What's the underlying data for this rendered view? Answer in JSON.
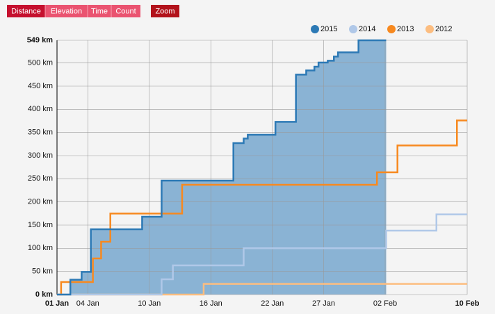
{
  "buttons": [
    "Distance",
    "Elevation",
    "Time",
    "Count"
  ],
  "zoom_button": "Zoom",
  "chart_data": {
    "type": "step",
    "legend": "top-right",
    "grid": true,
    "xlim": [
      0,
      40
    ],
    "xticks": [
      {
        "value": 0,
        "label": "01 Jan"
      },
      {
        "value": 3,
        "label": "04 Jan"
      },
      {
        "value": 9,
        "label": "10 Jan"
      },
      {
        "value": 15,
        "label": "16 Jan"
      },
      {
        "value": 21,
        "label": "22 Jan"
      },
      {
        "value": 26,
        "label": "27 Jan"
      },
      {
        "value": 32,
        "label": "02 Feb"
      },
      {
        "value": 40,
        "label": "10 Feb"
      }
    ],
    "ylim": [
      0,
      549
    ],
    "yticks": [
      {
        "value": 0,
        "label": "0 km"
      },
      {
        "value": 50,
        "label": "50 km"
      },
      {
        "value": 100,
        "label": "100 km"
      },
      {
        "value": 150,
        "label": "150 km"
      },
      {
        "value": 200,
        "label": "200 km"
      },
      {
        "value": 250,
        "label": "250 km"
      },
      {
        "value": 300,
        "label": "300 km"
      },
      {
        "value": 350,
        "label": "350 km"
      },
      {
        "value": 400,
        "label": "400 km"
      },
      {
        "value": 450,
        "label": "450 km"
      },
      {
        "value": 500,
        "label": "500 km"
      },
      {
        "value": 549,
        "label": "549 km"
      }
    ],
    "series": [
      {
        "name": "2015",
        "color": "#2c79b5",
        "fill_color": "#8ab3d4",
        "x": [
          0,
          1.3,
          2.4,
          3.3,
          8.3,
          10.2,
          17.2,
          18.2,
          18.6,
          21.3,
          23.3,
          24.3,
          25.1,
          25.5,
          26.4,
          27.0,
          27.4,
          29.4,
          32.1
        ],
        "values": [
          0,
          32,
          49,
          141,
          168,
          246,
          327,
          337,
          345,
          373,
          475,
          484,
          492,
          501,
          505,
          514,
          523,
          549,
          549
        ]
      },
      {
        "name": "2014",
        "color": "#b0c8e8",
        "x": [
          0,
          10.2,
          11.3,
          18.2,
          32.1,
          37.0,
          40
        ],
        "values": [
          0,
          33,
          63,
          100,
          138,
          173,
          173
        ]
      },
      {
        "name": "2013",
        "color": "#f7891f",
        "x": [
          0,
          0.4,
          3.5,
          4.3,
          5.2,
          12.2,
          31.2,
          33.2,
          39.0,
          40
        ],
        "values": [
          0,
          27,
          78,
          114,
          175,
          237,
          264,
          322,
          376,
          376
        ]
      },
      {
        "name": "2012",
        "color": "#fcbd80",
        "x": [
          0,
          14.3,
          40
        ],
        "values": [
          0,
          23,
          23
        ]
      }
    ]
  }
}
